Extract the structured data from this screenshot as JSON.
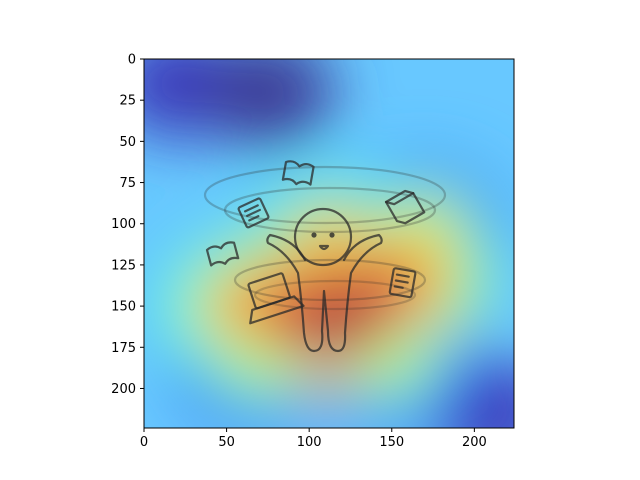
{
  "chart_data": {
    "type": "heatmap",
    "title": "",
    "xlabel": "",
    "ylabel": "",
    "xlim": [
      0,
      224
    ],
    "ylim": [
      224,
      0
    ],
    "x_ticks": [
      0,
      50,
      100,
      150,
      200
    ],
    "y_ticks": [
      0,
      25,
      50,
      75,
      100,
      125,
      150,
      175,
      200
    ],
    "grid": false,
    "legend": "none",
    "colormap": "jet",
    "overlay": "saliency heatmap over a line drawing of a stick figure juggling books, a laptop and papers",
    "hotspots": [
      {
        "x": 112,
        "y": 160,
        "intensity": 1.0
      },
      {
        "x": 135,
        "y": 145,
        "intensity": 0.95
      },
      {
        "x": 90,
        "y": 150,
        "intensity": 0.9
      },
      {
        "x": 160,
        "y": 130,
        "intensity": 0.8
      },
      {
        "x": 60,
        "y": 150,
        "intensity": 0.75
      },
      {
        "x": 112,
        "y": 110,
        "intensity": 0.7
      },
      {
        "x": 170,
        "y": 105,
        "intensity": 0.6
      },
      {
        "x": 70,
        "y": 185,
        "intensity": 0.55
      },
      {
        "x": 150,
        "y": 185,
        "intensity": 0.55
      }
    ],
    "cold_spots": [
      {
        "x": 20,
        "y": 15,
        "intensity": 0.05
      },
      {
        "x": 75,
        "y": 20,
        "intensity": 0.0
      },
      {
        "x": 210,
        "y": 215,
        "intensity": 0.05
      }
    ]
  }
}
